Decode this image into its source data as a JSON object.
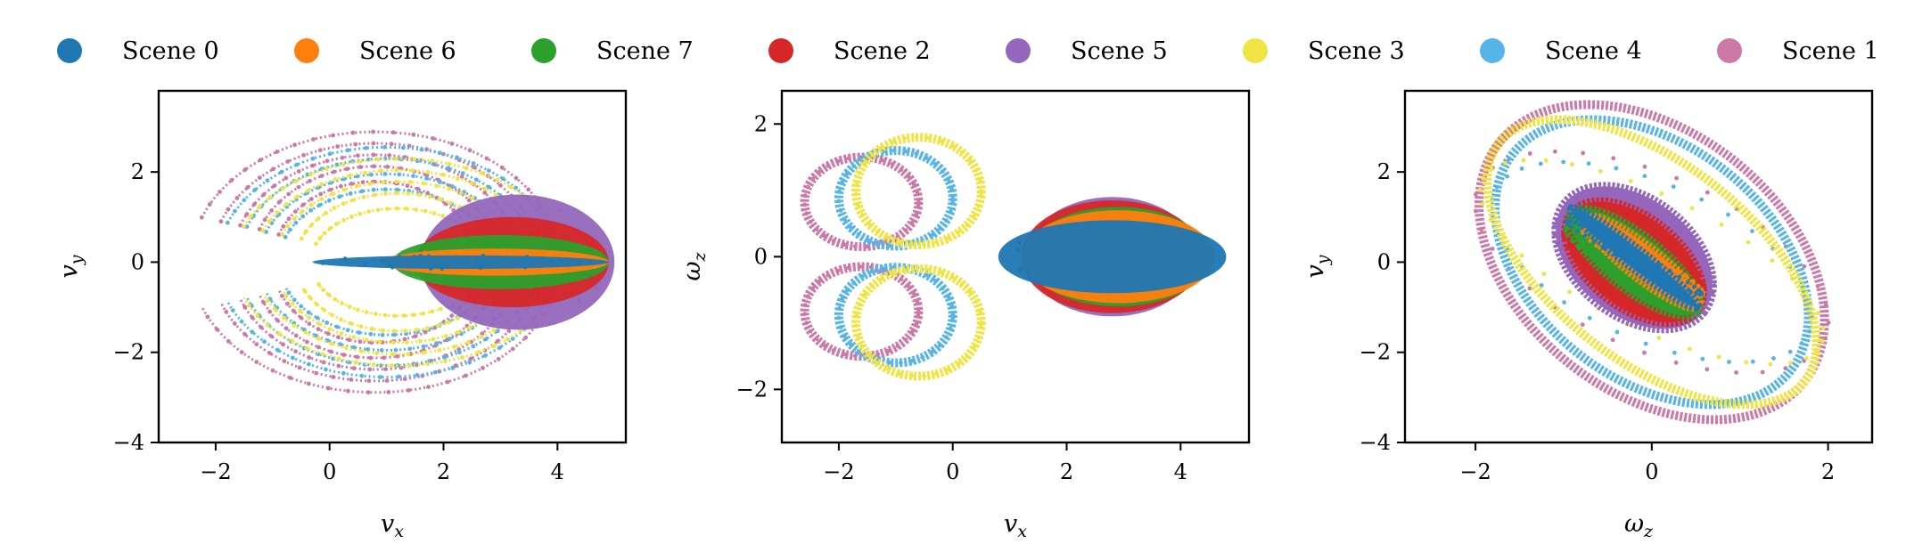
{
  "legend": {
    "entries": [
      {
        "label": "Scene 0",
        "color": "#1f77b4"
      },
      {
        "label": "Scene 6",
        "color": "#ff7f0e"
      },
      {
        "label": "Scene 7",
        "color": "#2ca02c"
      },
      {
        "label": "Scene 2",
        "color": "#d62728"
      },
      {
        "label": "Scene 5",
        "color": "#9467bd"
      },
      {
        "label": "Scene 3",
        "color": "#f0e442"
      },
      {
        "label": "Scene 4",
        "color": "#56b4e9"
      },
      {
        "label": "Scene 1",
        "color": "#cc79a7"
      }
    ]
  },
  "chart_data": [
    {
      "type": "scatter",
      "x_label": {
        "base": "v",
        "sub": "x"
      },
      "y_label": {
        "base": "v",
        "sub": "y"
      },
      "xlim": [
        -3.0,
        5.2
      ],
      "ylim": [
        -4.0,
        3.8
      ],
      "xticks": [
        -2,
        0,
        2,
        4
      ],
      "xtick_labels": [
        "−2",
        "0",
        "2",
        "4"
      ],
      "yticks": [
        -4,
        -2,
        0,
        2
      ],
      "ytick_labels": [
        "−4",
        "−2",
        "0",
        "2"
      ],
      "series": [
        {
          "name": "Scene 1",
          "color": "#cc79a7",
          "shape": "loops",
          "center": [
            0.8,
            0
          ],
          "radii": [
            [
              3.6,
              3.4
            ],
            [
              3.2,
              3.1
            ],
            [
              2.8,
              2.8
            ],
            [
              2.4,
              2.5
            ],
            [
              2.0,
              2.1
            ]
          ]
        },
        {
          "name": "Scene 4",
          "color": "#56b4e9",
          "shape": "loops",
          "center": [
            1.0,
            0
          ],
          "radii": [
            [
              3.3,
              3.0
            ],
            [
              2.9,
              2.7
            ],
            [
              2.5,
              2.3
            ],
            [
              2.1,
              1.9
            ]
          ]
        },
        {
          "name": "Scene 3",
          "color": "#f0e442",
          "shape": "loops",
          "center": [
            1.2,
            0
          ],
          "radii": [
            [
              3.2,
              2.7
            ],
            [
              2.8,
              2.4
            ],
            [
              2.4,
              2.1
            ],
            [
              2.0,
              1.8
            ],
            [
              1.7,
              1.4
            ]
          ]
        },
        {
          "name": "Scene 5",
          "color": "#9467bd",
          "shape": "blob",
          "center": [
            3.3,
            0
          ],
          "rx": 1.7,
          "ry": 1.5
        },
        {
          "name": "Scene 2",
          "color": "#d62728",
          "shape": "blob",
          "center": [
            3.2,
            0
          ],
          "rx": 1.7,
          "ry": 1.0
        },
        {
          "name": "Scene 7",
          "color": "#2ca02c",
          "shape": "blob",
          "center": [
            3.0,
            0
          ],
          "rx": 1.9,
          "ry": 0.6
        },
        {
          "name": "Scene 6",
          "color": "#ff7f0e",
          "shape": "blob",
          "center": [
            2.9,
            0
          ],
          "rx": 2.0,
          "ry": 0.3
        },
        {
          "name": "Scene 0",
          "color": "#1f77b4",
          "shape": "blob",
          "center": [
            2.3,
            0
          ],
          "rx": 2.6,
          "ry": 0.15
        }
      ]
    },
    {
      "type": "scatter",
      "x_label": {
        "base": "v",
        "sub": "x"
      },
      "y_label": {
        "base": "ω",
        "sub": "z"
      },
      "xlim": [
        -3.0,
        5.2
      ],
      "ylim": [
        -2.8,
        2.5
      ],
      "xticks": [
        -2,
        0,
        2,
        4
      ],
      "xtick_labels": [
        "−2",
        "0",
        "2",
        "4"
      ],
      "yticks": [
        -2,
        0,
        2
      ],
      "ytick_labels": [
        "−2",
        "0",
        "2"
      ],
      "series": [
        {
          "name": "Scene 1",
          "color": "#cc79a7",
          "shape": "wings",
          "center": [
            -1.6,
            0
          ],
          "rx": 1.0,
          "ry": 1.5
        },
        {
          "name": "Scene 4",
          "color": "#56b4e9",
          "shape": "wings",
          "center": [
            -1.0,
            0
          ],
          "rx": 1.0,
          "ry": 1.6
        },
        {
          "name": "Scene 3",
          "color": "#f0e442",
          "shape": "wings",
          "center": [
            -0.6,
            0
          ],
          "rx": 1.1,
          "ry": 1.8
        },
        {
          "name": "Scene 5",
          "color": "#9467bd",
          "shape": "blob",
          "center": [
            2.8,
            0
          ],
          "rx": 1.5,
          "ry": 0.9
        },
        {
          "name": "Scene 2",
          "color": "#d62728",
          "shape": "blob",
          "center": [
            2.8,
            0
          ],
          "rx": 1.6,
          "ry": 0.85
        },
        {
          "name": "Scene 7",
          "color": "#2ca02c",
          "shape": "blob",
          "center": [
            2.9,
            0
          ],
          "rx": 1.6,
          "ry": 0.75
        },
        {
          "name": "Scene 6",
          "color": "#ff7f0e",
          "shape": "blob",
          "center": [
            2.9,
            0
          ],
          "rx": 1.7,
          "ry": 0.7
        },
        {
          "name": "Scene 0",
          "color": "#1f77b4",
          "shape": "blob",
          "center": [
            2.8,
            0
          ],
          "rx": 2.0,
          "ry": 0.55
        }
      ]
    },
    {
      "type": "scatter",
      "x_label": {
        "base": "ω",
        "sub": "z"
      },
      "y_label": {
        "base": "v",
        "sub": "y"
      },
      "xlim": [
        -2.8,
        2.5
      ],
      "ylim": [
        -4.0,
        3.8
      ],
      "xticks": [
        -2,
        0,
        2
      ],
      "xtick_labels": [
        "−2",
        "0",
        "2"
      ],
      "yticks": [
        -4,
        -2,
        0,
        2
      ],
      "ytick_labels": [
        "−4",
        "−2",
        "0",
        "2"
      ],
      "series": [
        {
          "name": "Scene 1",
          "color": "#cc79a7",
          "shape": "diag",
          "center": [
            0,
            0
          ],
          "rx": 2.2,
          "ry": 2.9
        },
        {
          "name": "Scene 4",
          "color": "#56b4e9",
          "shape": "diag",
          "center": [
            0,
            0
          ],
          "rx": 2.0,
          "ry": 2.6
        },
        {
          "name": "Scene 3",
          "color": "#f0e442",
          "shape": "diag",
          "center": [
            0,
            0
          ],
          "rx": 2.2,
          "ry": 2.2
        },
        {
          "name": "Scene 5",
          "color": "#9467bd",
          "shape": "tilt",
          "center": [
            -0.2,
            0.1
          ],
          "rx": 1.0,
          "ry": 1.3
        },
        {
          "name": "Scene 2",
          "color": "#d62728",
          "shape": "tilt",
          "center": [
            -0.2,
            0.0
          ],
          "rx": 0.9,
          "ry": 1.0
        },
        {
          "name": "Scene 7",
          "color": "#2ca02c",
          "shape": "tilt",
          "center": [
            -0.2,
            0.0
          ],
          "rx": 0.9,
          "ry": 0.6
        },
        {
          "name": "Scene 6",
          "color": "#ff7f0e",
          "shape": "tilt",
          "center": [
            -0.1,
            0.0
          ],
          "rx": 0.8,
          "ry": 0.35
        },
        {
          "name": "Scene 0",
          "color": "#1f77b4",
          "shape": "tilt",
          "center": [
            -0.2,
            0.1
          ],
          "rx": 0.9,
          "ry": 0.2
        }
      ]
    }
  ]
}
